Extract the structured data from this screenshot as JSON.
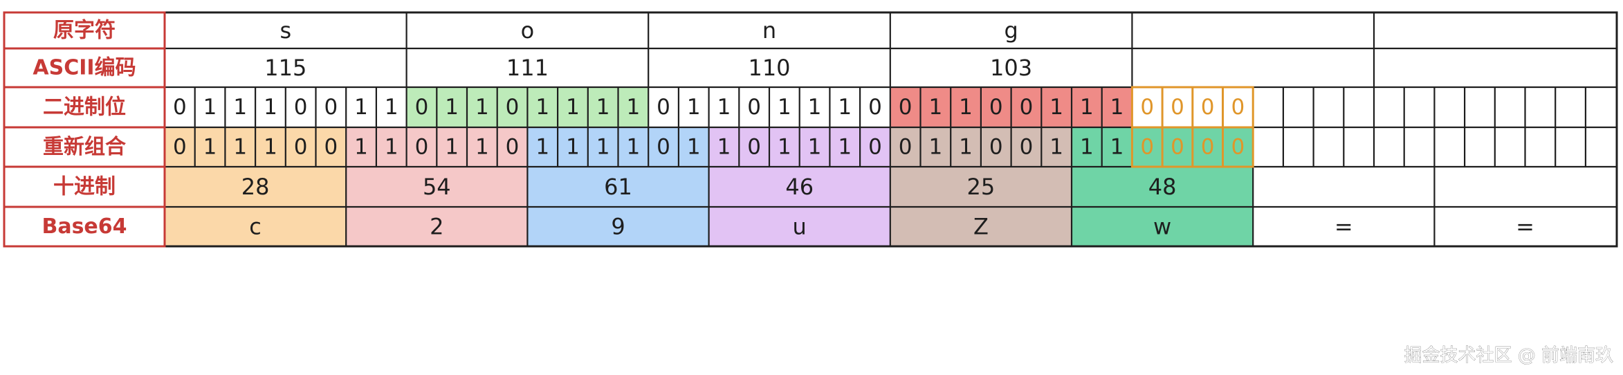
{
  "rows": {
    "labels": [
      "原字符",
      "ASCII编码",
      "二进制位",
      "重新组合",
      "十进制",
      "Base64"
    ]
  },
  "original_chars": [
    "s",
    "o",
    "n",
    "g",
    "",
    ""
  ],
  "ascii_codes": [
    "115",
    "111",
    "110",
    "103",
    "",
    ""
  ],
  "binary_bits": [
    "0",
    "1",
    "1",
    "1",
    "0",
    "0",
    "1",
    "1",
    "0",
    "1",
    "1",
    "0",
    "1",
    "1",
    "1",
    "1",
    "0",
    "1",
    "1",
    "0",
    "1",
    "1",
    "1",
    "0",
    "0",
    "1",
    "1",
    "0",
    "0",
    "1",
    "1",
    "1",
    "0",
    "0",
    "0",
    "0"
  ],
  "regrouped_bits": [
    "0",
    "1",
    "1",
    "1",
    "0",
    "0",
    "1",
    "1",
    "0",
    "1",
    "1",
    "0",
    "1",
    "1",
    "1",
    "1",
    "0",
    "1",
    "1",
    "0",
    "1",
    "1",
    "1",
    "0",
    "0",
    "1",
    "1",
    "0",
    "0",
    "1",
    "1",
    "1",
    "0",
    "0",
    "0",
    "0"
  ],
  "decimal_values": [
    "28",
    "54",
    "61",
    "46",
    "25",
    "48",
    "",
    ""
  ],
  "base64_chars": [
    "c",
    "2",
    "9",
    "u",
    "Z",
    "w",
    "=",
    "="
  ],
  "watermark": "掘金技术社区 @ 前端南玖",
  "colors": {
    "label_red": "#c73a36",
    "group1_orange": "#fbd8a9",
    "group2_pink": "#f5c8c8",
    "group3_blue": "#b2d4f8",
    "group4_purple": "#e2c3f4",
    "group5_taupe": "#d3bdb4",
    "group6_green": "#6fd4a6",
    "byte2_green": "#bdebb9",
    "byte4_red": "#ef8b87",
    "padding_orange": "#e0962a"
  }
}
